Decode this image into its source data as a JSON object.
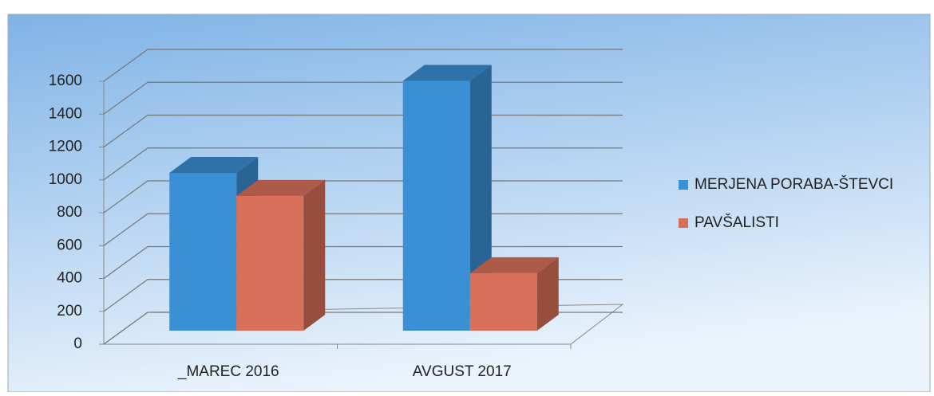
{
  "chart_data": {
    "type": "bar3d",
    "categories": [
      "_MAREC 2016",
      "AVGUST 2017"
    ],
    "series": [
      {
        "name": "MERJENA PORABA-ŠTEVCI",
        "color": "#3b8fd4",
        "values": [
          960,
          1520
        ]
      },
      {
        "name": "PAVŠALISTI",
        "color": "#d9705a",
        "values": [
          820,
          350
        ]
      }
    ],
    "ylim": [
      0,
      1600
    ],
    "yticks": [
      0,
      200,
      400,
      600,
      800,
      1000,
      1200,
      1400,
      1600
    ],
    "grid": true,
    "legend": "right"
  }
}
